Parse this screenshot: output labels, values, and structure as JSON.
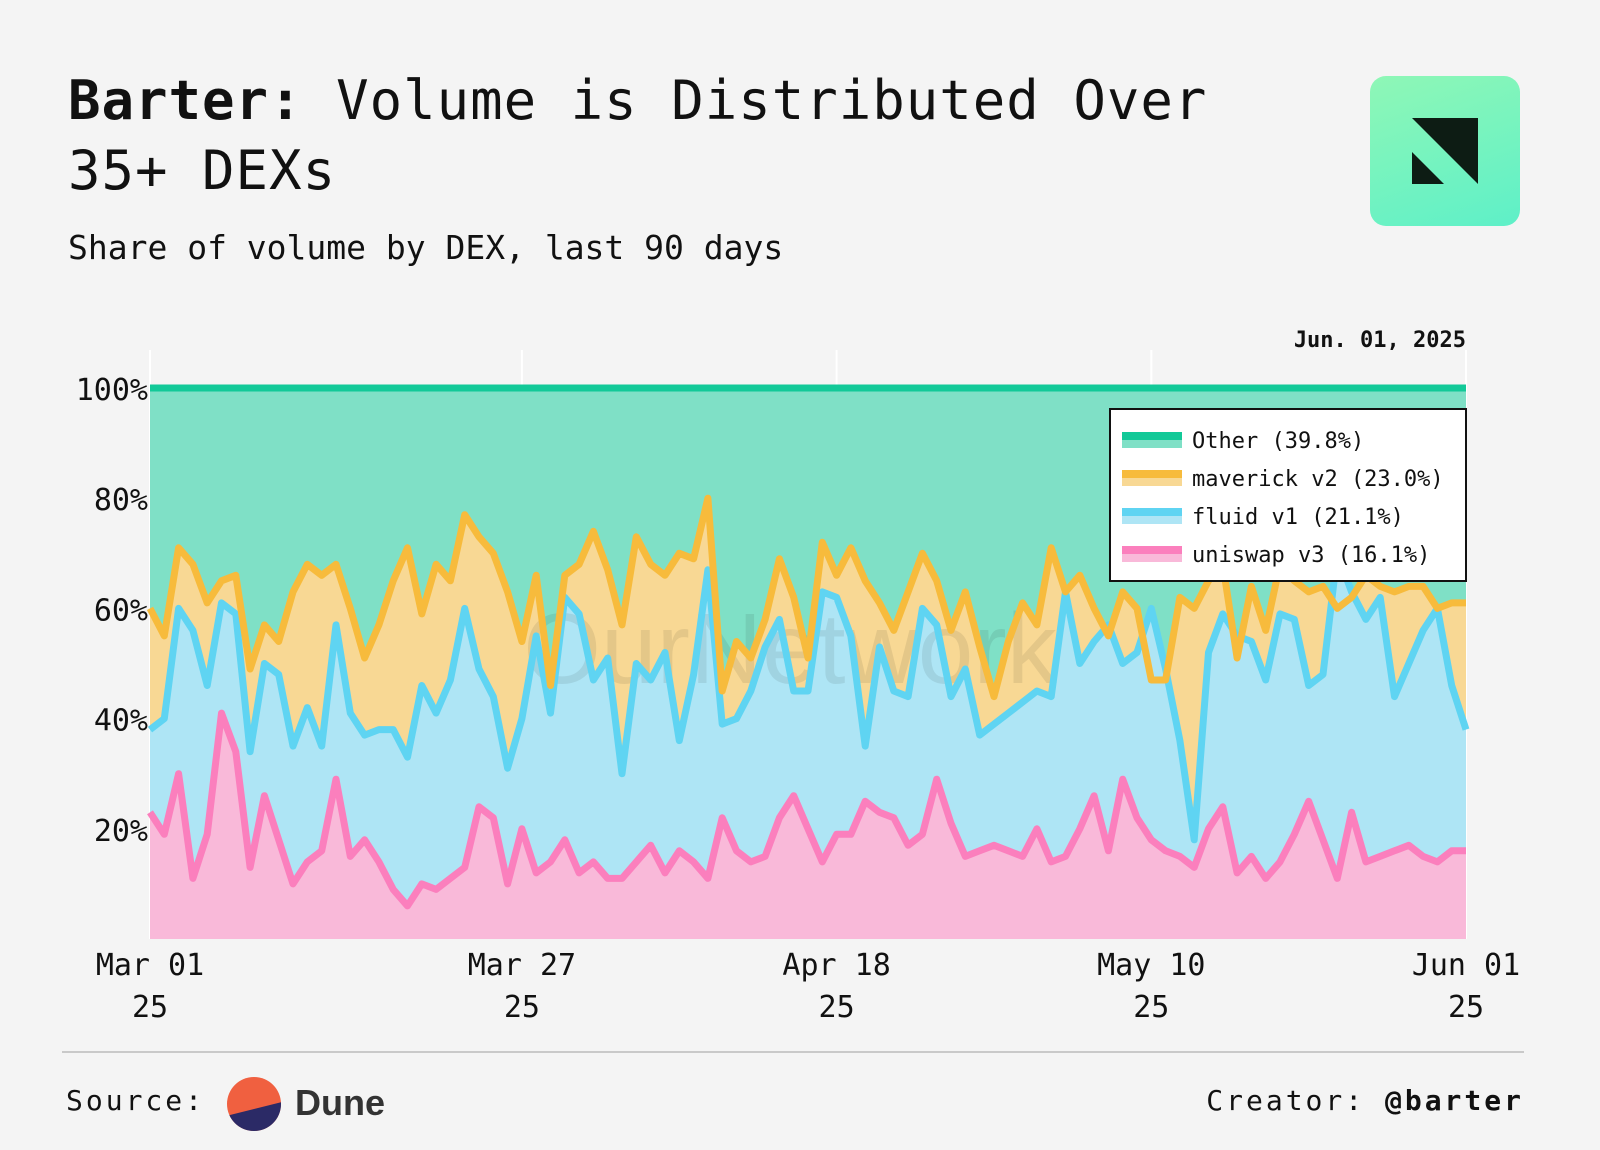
{
  "header": {
    "title_bold": "Barter:",
    "title_rest": "Volume is Distributed Over 35+ DEXs",
    "subtitle": "Share of volume by DEX, last 90 days"
  },
  "footer": {
    "source_label": "Source:",
    "source_name": "Dune",
    "creator_label": "Creator:",
    "creator_handle": "@barter"
  },
  "watermark": "OurNetwork",
  "logo_icon": "barter-logo-icon",
  "chart_data": {
    "type": "area",
    "stacked": true,
    "title": "Barter: Volume is Distributed Over 35+ DEXs",
    "subtitle": "Share of volume by DEX, last 90 days",
    "date_label": "Jun. 01, 2025",
    "ylim": [
      0,
      100
    ],
    "y_ticks": [
      {
        "value": 100,
        "label": "100%"
      },
      {
        "value": 80,
        "label": "80%"
      },
      {
        "value": 60,
        "label": "60%"
      },
      {
        "value": 40,
        "label": "40%"
      },
      {
        "value": 20,
        "label": "20%"
      }
    ],
    "x_range": [
      0,
      92
    ],
    "x_ticks": [
      {
        "x": 0,
        "line1": "Mar 01",
        "line2": "25"
      },
      {
        "x": 26,
        "line1": "Mar 27",
        "line2": "25"
      },
      {
        "x": 48,
        "line1": "Apr 18",
        "line2": "25"
      },
      {
        "x": 70,
        "line1": "May 10",
        "line2": "25"
      },
      {
        "x": 92,
        "line1": "Jun 01",
        "line2": "25"
      }
    ],
    "legend_position": "top-right",
    "series": [
      {
        "name": "Other (39.8%)",
        "line_color": "#12c998",
        "fill_color": "#7fe0c6",
        "cumulative": [
          100,
          100,
          100,
          100,
          100,
          100,
          100,
          100,
          100,
          100,
          100,
          100,
          100,
          100,
          100,
          100,
          100,
          100,
          100,
          100,
          100,
          100,
          100,
          100,
          100,
          100,
          100,
          100,
          100,
          100,
          100,
          100,
          100,
          100,
          100,
          100,
          100,
          100,
          100,
          100,
          100,
          100,
          100,
          100,
          100,
          100,
          100,
          100,
          100,
          100,
          100,
          100,
          100,
          100,
          100,
          100,
          100,
          100,
          100,
          100,
          100,
          100,
          100,
          100,
          100,
          100,
          100,
          100,
          100,
          100,
          100,
          100,
          100,
          100,
          100,
          100,
          100,
          100,
          100,
          100,
          100,
          100,
          100,
          100,
          100,
          100,
          100,
          100,
          100,
          100,
          100,
          100,
          100
        ]
      },
      {
        "name": "maverick v2 (23.0%)",
        "line_color": "#f7bb3c",
        "fill_color": "#f8d894",
        "cumulative": [
          60,
          55,
          71,
          68,
          61,
          65,
          66,
          49,
          57,
          54,
          63,
          68,
          66,
          68,
          60,
          51,
          57,
          65,
          71,
          59,
          68,
          65,
          77,
          73,
          70,
          63,
          54,
          66,
          46,
          66,
          68,
          74,
          67,
          57,
          73,
          68,
          66,
          70,
          69,
          80,
          45,
          54,
          51,
          58,
          69,
          62,
          51,
          72,
          66,
          71,
          65,
          61,
          56,
          63,
          70,
          65,
          56,
          63,
          53,
          44,
          54,
          61,
          57,
          71,
          63,
          66,
          60,
          55,
          63,
          60,
          47,
          47,
          62,
          60,
          65,
          68,
          51,
          64,
          56,
          68,
          65,
          63,
          64,
          60,
          62,
          66,
          64,
          63,
          64,
          64,
          60,
          61,
          61
        ]
      },
      {
        "name": "fluid v1 (21.1%)",
        "line_color": "#5fd4f2",
        "fill_color": "#aee5f5",
        "cumulative": [
          38,
          40,
          60,
          56,
          46,
          61,
          59,
          34,
          50,
          48,
          35,
          42,
          35,
          57,
          41,
          37,
          38,
          38,
          33,
          46,
          41,
          47,
          60,
          49,
          44,
          31,
          40,
          55,
          41,
          62,
          59,
          47,
          51,
          30,
          50,
          47,
          52,
          36,
          48,
          67,
          39,
          40,
          45,
          53,
          58,
          45,
          45,
          63,
          62,
          55,
          35,
          53,
          45,
          44,
          60,
          57,
          44,
          49,
          37,
          39,
          41,
          43,
          45,
          44,
          63,
          50,
          54,
          57,
          50,
          52,
          60,
          49,
          36,
          18,
          52,
          59,
          55,
          54,
          47,
          59,
          58,
          46,
          48,
          70,
          63,
          58,
          62,
          44,
          50,
          56,
          60,
          46,
          38
        ]
      },
      {
        "name": "uniswap v3 (16.1%)",
        "line_color": "#fb7fbd",
        "fill_color": "#f9b9d9",
        "cumulative": [
          23,
          19,
          30,
          11,
          19,
          41,
          34,
          13,
          26,
          18,
          10,
          14,
          16,
          29,
          15,
          18,
          14,
          9,
          6,
          10,
          9,
          11,
          13,
          24,
          22,
          10,
          20,
          12,
          14,
          18,
          12,
          14,
          11,
          11,
          14,
          17,
          12,
          16,
          14,
          11,
          22,
          16,
          14,
          15,
          22,
          26,
          20,
          14,
          19,
          19,
          25,
          23,
          22,
          17,
          19,
          29,
          21,
          15,
          16,
          17,
          16,
          15,
          20,
          14,
          15,
          20,
          26,
          16,
          29,
          22,
          18,
          16,
          15,
          13,
          20,
          24,
          12,
          15,
          11,
          14,
          19,
          25,
          18,
          11,
          23,
          14,
          15,
          16,
          17,
          15,
          14,
          16,
          16
        ]
      }
    ]
  }
}
